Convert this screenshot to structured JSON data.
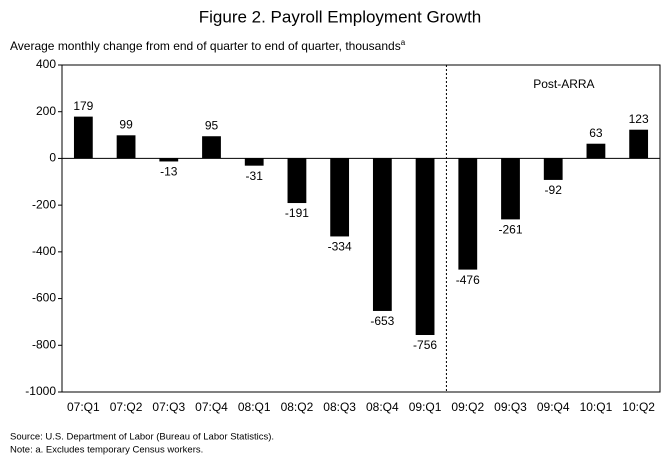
{
  "chart_data": {
    "type": "bar",
    "title": "Figure 2.  Payroll Employment Growth",
    "subtitle": "Average monthly change from end of quarter to end of quarter, thousands",
    "subtitle_marker": "a",
    "categories": [
      "07:Q1",
      "07:Q2",
      "07:Q3",
      "07:Q4",
      "08:Q1",
      "08:Q2",
      "08:Q3",
      "08:Q4",
      "09:Q1",
      "09:Q2",
      "09:Q3",
      "09:Q4",
      "10:Q1",
      "10:Q2"
    ],
    "values": [
      179,
      99,
      -13,
      95,
      -31,
      -191,
      -334,
      -653,
      -756,
      -476,
      -261,
      -92,
      63,
      123
    ],
    "color": "#000000",
    "ylim": [
      -1000,
      400
    ],
    "yticks": [
      -1000,
      -800,
      -600,
      -400,
      -200,
      0,
      200,
      400
    ],
    "grid": false,
    "annotation": {
      "text": "Post-ARRA",
      "start_category": "09:Q2"
    },
    "source": "Source: U.S. Department of Labor (Bureau of Labor Statistics).",
    "note": "Note: a. Excludes temporary Census workers."
  }
}
